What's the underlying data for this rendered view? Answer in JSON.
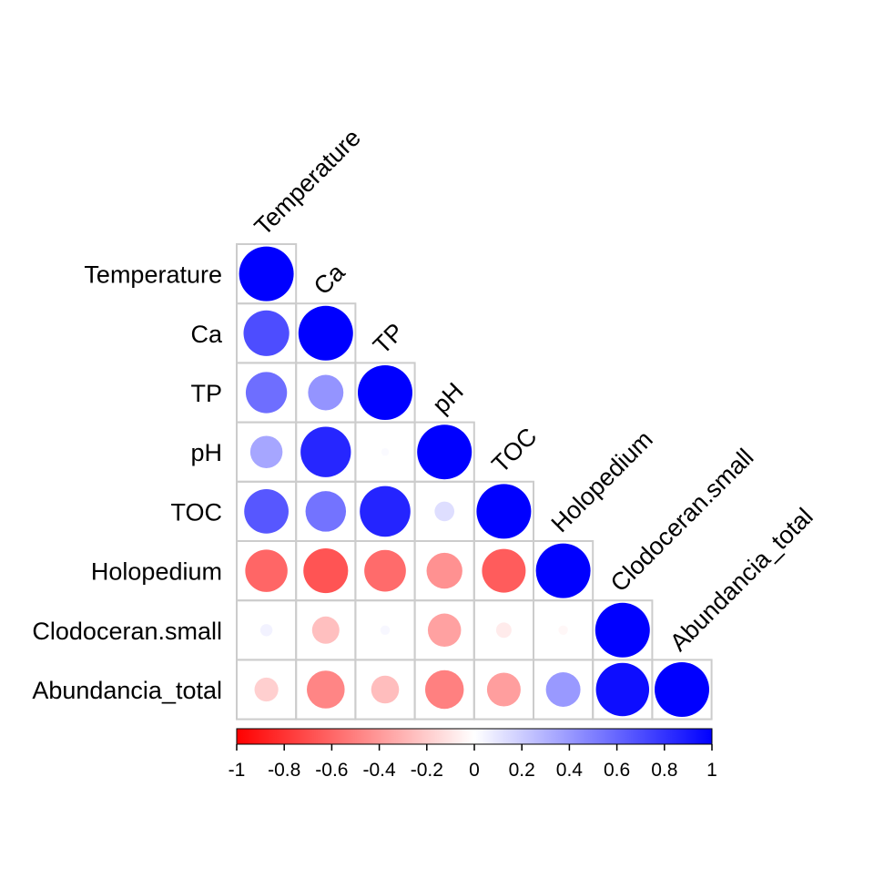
{
  "chart_data": {
    "type": "heatmap",
    "style": "lower-triangular correlation plot with circles",
    "variables": [
      "Temperature",
      "Ca",
      "TP",
      "pH",
      "TOC",
      "Holopedium",
      "Clodoceran.small",
      "Abundancia_total"
    ],
    "matrix": [
      [
        1.0
      ],
      [
        0.7,
        1.0
      ],
      [
        0.57,
        0.42,
        1.0
      ],
      [
        0.35,
        0.85,
        0.02,
        1.0
      ],
      [
        0.66,
        0.55,
        0.86,
        0.13,
        1.0
      ],
      [
        -0.6,
        -0.67,
        -0.58,
        -0.43,
        -0.64,
        1.0
      ],
      [
        0.05,
        -0.25,
        0.03,
        -0.37,
        -0.08,
        -0.03,
        1.0
      ],
      [
        -0.19,
        -0.48,
        -0.26,
        -0.5,
        -0.38,
        0.4,
        0.95,
        1.0
      ]
    ],
    "color_scale": {
      "min": -1,
      "max": 1,
      "colors": {
        "negative": "#FF0000",
        "zero": "#FFFFFF",
        "positive": "#0000FF"
      },
      "ticks": [
        "-1",
        "-0.8",
        "-0.6",
        "-0.4",
        "-0.2",
        "0",
        "0.2",
        "0.4",
        "0.6",
        "0.8",
        "1"
      ]
    },
    "grid": true,
    "grid_color": "#CCCCCC",
    "legend_position": "bottom"
  }
}
